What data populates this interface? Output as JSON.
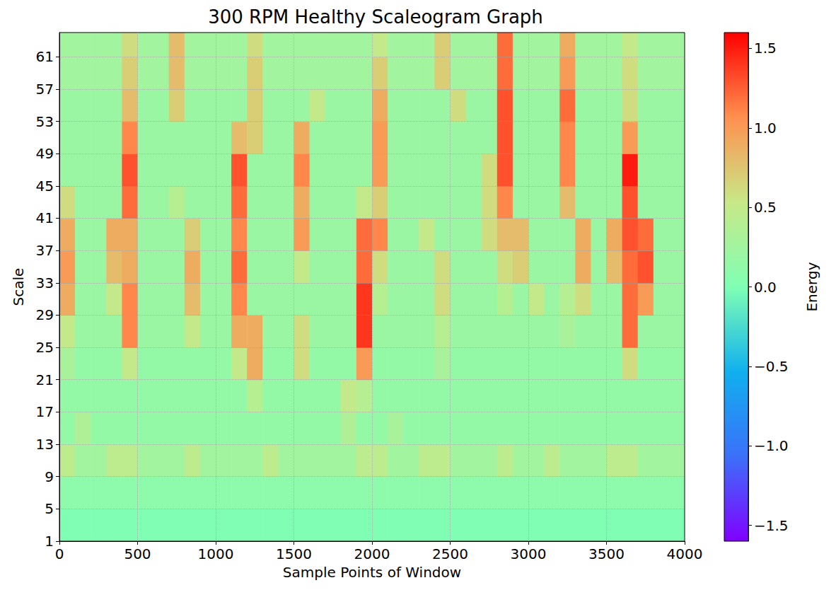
{
  "chart_data": {
    "type": "heatmap",
    "title": "300 RPM Healthy Scaleogram Graph",
    "x_label": "Sample Points of Window",
    "y_label": "Scale",
    "xlim": [
      0,
      4000
    ],
    "xticks": [
      0,
      500,
      1000,
      1500,
      2000,
      2500,
      3000,
      3500,
      4000
    ],
    "ylim": [
      1,
      64
    ],
    "yticks": [
      1,
      5,
      9,
      13,
      17,
      21,
      25,
      29,
      33,
      37,
      41,
      45,
      49,
      53,
      57,
      61
    ],
    "grid": true,
    "x_edges": [
      0,
      100,
      200,
      300,
      400,
      500,
      600,
      700,
      800,
      900,
      1000,
      1100,
      1200,
      1300,
      1400,
      1500,
      1600,
      1700,
      1800,
      1900,
      2000,
      2100,
      2200,
      2300,
      2400,
      2500,
      2600,
      2700,
      2800,
      2900,
      3000,
      3100,
      3200,
      3300,
      3400,
      3500,
      3600,
      3700,
      3800,
      3900,
      4000
    ],
    "y_edges": [
      1,
      5,
      9,
      13,
      17,
      21,
      25,
      29,
      33,
      37,
      41,
      45,
      49,
      53,
      57,
      61,
      64
    ],
    "cells": [
      [
        0,
        0,
        0,
        0,
        0,
        0,
        0,
        0,
        0,
        0,
        0,
        0,
        0,
        0,
        0,
        0,
        0,
        0,
        0,
        0,
        0,
        0,
        0,
        0,
        0,
        0,
        0,
        0,
        0,
        0,
        0,
        0,
        0,
        0,
        0,
        0,
        0,
        0,
        0,
        0
      ],
      [
        0.1,
        0.1,
        0.1,
        0.1,
        0.1,
        0.1,
        0.1,
        0.1,
        0.1,
        0.1,
        0.1,
        0.1,
        0.1,
        0.1,
        0.1,
        0.1,
        0.1,
        0.1,
        0.1,
        0.1,
        0.1,
        0.1,
        0.1,
        0.1,
        0.1,
        0.1,
        0.1,
        0.1,
        0.1,
        0.1,
        0.1,
        0.1,
        0.1,
        0.1,
        0.1,
        0.1,
        0.1,
        0.1,
        0.1,
        0.1
      ],
      [
        0.45,
        0.25,
        0.25,
        0.45,
        0.45,
        0.25,
        0.25,
        0.25,
        0.45,
        0.25,
        0.25,
        0.25,
        0.25,
        0.45,
        0.25,
        0.25,
        0.25,
        0.25,
        0.25,
        0.45,
        0.45,
        0.25,
        0.25,
        0.45,
        0.45,
        0.25,
        0.25,
        0.25,
        0.45,
        0.25,
        0.25,
        0.45,
        0.25,
        0.25,
        0.25,
        0.45,
        0.45,
        0.25,
        0.25,
        0.25
      ],
      [
        0.15,
        0.35,
        0.15,
        0.15,
        0.15,
        0.15,
        0.15,
        0.15,
        0.15,
        0.15,
        0.15,
        0.15,
        0.15,
        0.15,
        0.15,
        0.15,
        0.15,
        0.15,
        0.35,
        0.15,
        0.15,
        0.3,
        0.15,
        0.15,
        0.15,
        0.15,
        0.15,
        0.15,
        0.15,
        0.15,
        0.15,
        0.15,
        0.15,
        0.15,
        0.15,
        0.15,
        0.15,
        0.15,
        0.15,
        0.15
      ],
      [
        0.15,
        0.15,
        0.15,
        0.15,
        0.15,
        0.15,
        0.15,
        0.15,
        0.15,
        0.15,
        0.15,
        0.15,
        0.4,
        0.15,
        0.15,
        0.15,
        0.15,
        0.15,
        0.5,
        0.4,
        0.15,
        0.15,
        0.15,
        0.15,
        0.15,
        0.15,
        0.15,
        0.15,
        0.15,
        0.15,
        0.15,
        0.15,
        0.15,
        0.15,
        0.15,
        0.15,
        0.15,
        0.15,
        0.15,
        0.15
      ],
      [
        0.3,
        0.15,
        0.15,
        0.15,
        0.5,
        0.15,
        0.15,
        0.15,
        0.15,
        0.15,
        0.15,
        0.5,
        0.9,
        0.15,
        0.15,
        0.6,
        0.15,
        0.15,
        0.15,
        1.0,
        0.15,
        0.15,
        0.15,
        0.15,
        0.3,
        0.15,
        0.15,
        0.15,
        0.15,
        0.15,
        0.15,
        0.15,
        0.15,
        0.15,
        0.15,
        0.15,
        0.6,
        0.15,
        0.15,
        0.15
      ],
      [
        0.5,
        0.2,
        0.2,
        0.2,
        1.1,
        0.2,
        0.2,
        0.2,
        0.5,
        0.2,
        0.2,
        0.9,
        0.9,
        0.2,
        0.2,
        0.6,
        0.2,
        0.2,
        0.2,
        1.4,
        0.2,
        0.2,
        0.2,
        0.2,
        0.4,
        0.2,
        0.2,
        0.2,
        0.2,
        0.2,
        0.2,
        0.2,
        0.3,
        0.2,
        0.2,
        0.2,
        1.2,
        0.2,
        0.2,
        0.2
      ],
      [
        0.9,
        0.2,
        0.2,
        0.5,
        1.1,
        0.2,
        0.2,
        0.2,
        0.8,
        0.2,
        0.2,
        1.1,
        0.2,
        0.2,
        0.2,
        0.2,
        0.2,
        0.2,
        0.2,
        1.4,
        0.4,
        0.2,
        0.2,
        0.2,
        0.6,
        0.2,
        0.2,
        0.2,
        0.4,
        0.2,
        0.5,
        0.2,
        0.4,
        0.6,
        0.2,
        0.2,
        1.2,
        1.0,
        0.2,
        0.2
      ],
      [
        1.0,
        0.2,
        0.2,
        0.8,
        0.9,
        0.2,
        0.2,
        0.2,
        0.9,
        0.2,
        0.2,
        1.2,
        0.2,
        0.2,
        0.2,
        0.5,
        0.2,
        0.2,
        0.2,
        1.2,
        0.6,
        0.2,
        0.2,
        0.2,
        0.6,
        0.2,
        0.2,
        0.2,
        0.6,
        0.7,
        0.2,
        0.2,
        0.2,
        0.9,
        0.2,
        0.8,
        1.2,
        1.3,
        0.2,
        0.2
      ],
      [
        0.9,
        0.2,
        0.2,
        0.9,
        0.9,
        0.2,
        0.2,
        0.2,
        0.7,
        0.2,
        0.2,
        1.1,
        0.2,
        0.2,
        0.2,
        1.0,
        0.2,
        0.2,
        0.2,
        1.2,
        1.1,
        0.2,
        0.2,
        0.5,
        0.2,
        0.2,
        0.2,
        0.6,
        0.8,
        0.8,
        0.2,
        0.2,
        0.2,
        0.9,
        0.2,
        0.9,
        1.3,
        1.2,
        0.2,
        0.2
      ],
      [
        0.6,
        0.2,
        0.2,
        0.2,
        1.2,
        0.2,
        0.2,
        0.4,
        0.2,
        0.2,
        0.2,
        1.2,
        0.2,
        0.2,
        0.2,
        0.9,
        0.2,
        0.2,
        0.2,
        0.5,
        0.7,
        0.2,
        0.2,
        0.2,
        0.2,
        0.2,
        0.2,
        0.6,
        1.1,
        0.2,
        0.2,
        0.2,
        0.8,
        0.2,
        0.2,
        0.2,
        1.3,
        0.2,
        0.2,
        0.2
      ],
      [
        0.2,
        0.2,
        0.2,
        0.2,
        1.3,
        0.2,
        0.2,
        0.2,
        0.2,
        0.2,
        0.2,
        1.3,
        0.2,
        0.2,
        0.2,
        1.1,
        0.2,
        0.2,
        0.2,
        0.2,
        1.0,
        0.2,
        0.2,
        0.2,
        0.2,
        0.2,
        0.2,
        0.6,
        1.3,
        0.2,
        0.2,
        0.2,
        1.1,
        0.2,
        0.2,
        0.2,
        1.5,
        0.2,
        0.2,
        0.2
      ],
      [
        0.2,
        0.2,
        0.2,
        0.2,
        1.1,
        0.2,
        0.2,
        0.2,
        0.2,
        0.2,
        0.2,
        0.8,
        0.7,
        0.2,
        0.2,
        0.9,
        0.2,
        0.2,
        0.2,
        0.2,
        1.0,
        0.2,
        0.2,
        0.2,
        0.2,
        0.2,
        0.2,
        0.2,
        1.3,
        0.2,
        0.2,
        0.2,
        1.1,
        0.2,
        0.2,
        0.2,
        1.0,
        0.2,
        0.2,
        0.2
      ],
      [
        0.2,
        0.2,
        0.2,
        0.2,
        0.8,
        0.2,
        0.2,
        0.7,
        0.2,
        0.2,
        0.2,
        0.2,
        0.7,
        0.2,
        0.2,
        0.2,
        0.5,
        0.2,
        0.2,
        0.2,
        0.9,
        0.2,
        0.2,
        0.2,
        0.2,
        0.6,
        0.2,
        0.2,
        1.3,
        0.2,
        0.2,
        0.2,
        1.2,
        0.2,
        0.2,
        0.2,
        0.6,
        0.2,
        0.2,
        0.2
      ],
      [
        0.25,
        0.25,
        0.25,
        0.25,
        0.7,
        0.25,
        0.25,
        0.8,
        0.25,
        0.25,
        0.25,
        0.25,
        0.7,
        0.25,
        0.25,
        0.25,
        0.25,
        0.25,
        0.25,
        0.25,
        0.7,
        0.25,
        0.25,
        0.25,
        0.7,
        0.25,
        0.25,
        0.25,
        1.2,
        0.25,
        0.25,
        0.25,
        1.0,
        0.25,
        0.25,
        0.25,
        0.6,
        0.25,
        0.25,
        0.25
      ],
      [
        0.25,
        0.25,
        0.25,
        0.25,
        0.6,
        0.25,
        0.25,
        0.8,
        0.25,
        0.25,
        0.25,
        0.25,
        0.6,
        0.25,
        0.25,
        0.25,
        0.25,
        0.25,
        0.25,
        0.25,
        0.5,
        0.25,
        0.25,
        0.25,
        0.7,
        0.25,
        0.25,
        0.25,
        1.2,
        0.25,
        0.25,
        0.25,
        0.9,
        0.25,
        0.25,
        0.25,
        0.5,
        0.25,
        0.25,
        0.25
      ]
    ],
    "colorbar": {
      "label": "Energy",
      "range": [
        -1.6,
        1.6
      ],
      "ticks": [
        {
          "value": -1.5,
          "label": "−1.5"
        },
        {
          "value": -1.0,
          "label": "−1.0"
        },
        {
          "value": -0.5,
          "label": "−0.5"
        },
        {
          "value": 0.0,
          "label": "0.0"
        },
        0.5,
        {
          "value": 1.0,
          "label": "1.0"
        },
        1.5
      ]
    }
  }
}
